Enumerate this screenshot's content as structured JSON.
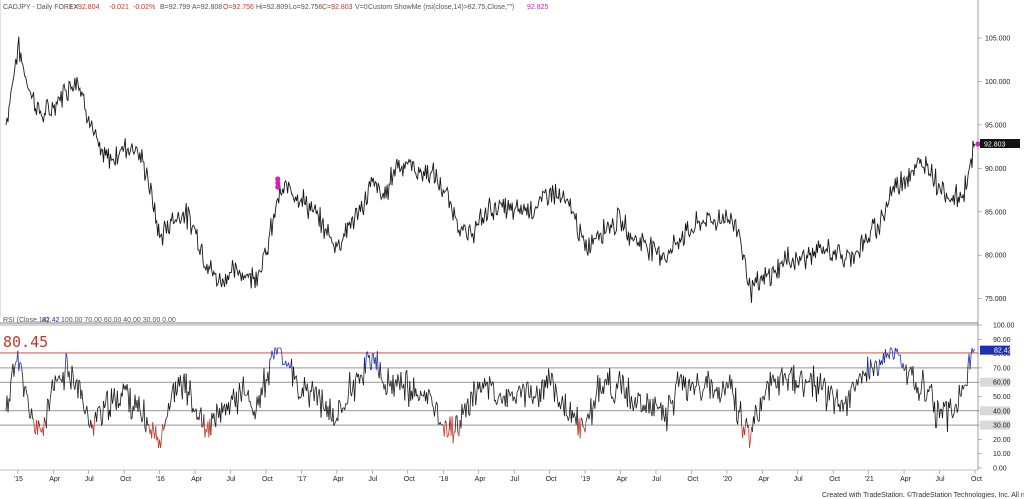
{
  "header": {
    "title": "CADJPY - Daily  FOREX",
    "L": "L=92.804",
    "chg": "-0.021",
    "chgpct": "-0.02%",
    "B": "B=92.799",
    "A": "A=92.808",
    "O": "O=92.756",
    "H": "Hi=92.809",
    "Lo": "Lo=92.756",
    "C": "C=92.803",
    "V": "V=0",
    "indicator": "Custom ShowMe (rsi(close,14)>82.75,Close,\"\")",
    "indicator_value": "92.825"
  },
  "rsi_header": {
    "label": "RSI (Close,14)",
    "value": "82.42",
    "levels_text": "100.00  70.00  60.00  40.00  30.00  0.00"
  },
  "annotation": "80.45",
  "footer": "Created with TradeStation. ©TradeStation Technologies, Inc. All rights reserved.",
  "colors": {
    "price_line": "#1a1a1a",
    "marker": "#d61fbf",
    "overbought": "#1f2fb5",
    "oversold": "#c0392b",
    "level_line": "#c0392b",
    "axis": "#888888"
  },
  "chart_data": [
    {
      "type": "line",
      "title": "CADJPY - Daily",
      "series": [
        {
          "name": "CADJPY",
          "x": [
            "Dec 2014",
            "Jan 2015",
            "Feb 2015",
            "Mar 2015",
            "Apr 2015",
            "May 2015",
            "Jun 2015",
            "Jul 2015",
            "Aug 2015",
            "Sep 2015",
            "Oct 2015",
            "Nov 2015",
            "Dec 2015",
            "Jan 2016",
            "Feb 2016",
            "Mar 2016",
            "Apr 2016",
            "May 2016",
            "Jun 2016",
            "Jul 2016",
            "Aug 2016",
            "Sep 2016",
            "Oct 2016",
            "Nov 2016",
            "Dec 2016",
            "Jan 2017",
            "Feb 2017",
            "Mar 2017",
            "Apr 2017",
            "May 2017",
            "Jun 2017",
            "Jul 2017",
            "Aug 2017",
            "Sep 2017",
            "Oct 2017",
            "Nov 2017",
            "Dec 2017",
            "Jan 2018",
            "Feb 2018",
            "Mar 2018",
            "Apr 2018",
            "May 2018",
            "Jun 2018",
            "Jul 2018",
            "Aug 2018",
            "Sep 2018",
            "Oct 2018",
            "Nov 2018",
            "Dec 2018",
            "Jan 2019",
            "Feb 2019",
            "Mar 2019",
            "Apr 2019",
            "May 2019",
            "Jun 2019",
            "Jul 2019",
            "Aug 2019",
            "Sep 2019",
            "Oct 2019",
            "Nov 2019",
            "Dec 2019",
            "Jan 2020",
            "Feb 2020",
            "Mar 2020",
            "Apr 2020",
            "May 2020",
            "Jun 2020",
            "Jul 2020",
            "Aug 2020",
            "Sep 2020",
            "Oct 2020",
            "Nov 2020",
            "Dec 2020",
            "Jan 2021",
            "Feb 2021",
            "Mar 2021",
            "Apr 2021",
            "May 2021",
            "Jun 2021",
            "Jul 2021",
            "Aug 2021",
            "Sep 2021",
            "Oct 2021"
          ],
          "values": [
            95,
            104,
            99,
            96,
            97,
            99,
            100.5,
            96,
            91.5,
            91,
            92.5,
            92.5,
            89,
            82,
            84,
            85,
            83,
            79,
            77,
            78,
            78,
            77.5,
            80,
            86.5,
            88,
            86.5,
            85,
            83,
            81,
            83.5,
            85,
            88.5,
            86.5,
            90.5,
            90.5,
            89.5,
            89.5,
            87.5,
            84.5,
            82,
            83.5,
            85.5,
            85.5,
            85,
            85.5,
            85.5,
            87.5,
            86.5,
            85,
            80.5,
            82.5,
            83.5,
            84,
            82,
            81.5,
            80.5,
            80,
            82,
            83,
            84,
            84,
            84.5,
            83,
            76,
            77,
            78,
            79.5,
            79.5,
            80,
            80.5,
            80.5,
            79.5,
            80.5,
            82,
            84,
            87.5,
            89,
            90,
            90.5,
            88,
            86.5,
            87,
            92.8
          ]
        }
      ],
      "ylim": [
        73,
        108
      ],
      "yticks": [
        "105.000",
        "100.000",
        "95.000",
        "90.000",
        "85.000",
        "80.000",
        "75.000"
      ],
      "last_value": "92.803",
      "markers": [
        {
          "x": "Nov 2016",
          "y": 88.2
        },
        {
          "x": "Oct 2021",
          "y": 92.8
        }
      ]
    },
    {
      "type": "line",
      "title": "RSI (Close,14)",
      "series": [
        {
          "name": "RSI",
          "x": [
            "Dec 2014",
            "Jan 2015",
            "Feb 2015",
            "Mar 2015",
            "Apr 2015",
            "May 2015",
            "Jun 2015",
            "Jul 2015",
            "Aug 2015",
            "Sep 2015",
            "Oct 2015",
            "Nov 2015",
            "Dec 2015",
            "Jan 2016",
            "Feb 2016",
            "Mar 2016",
            "Apr 2016",
            "May 2016",
            "Jun 2016",
            "Jul 2016",
            "Aug 2016",
            "Sep 2016",
            "Oct 2016",
            "Nov 2016",
            "Dec 2016",
            "Jan 2017",
            "Feb 2017",
            "Mar 2017",
            "Apr 2017",
            "May 2017",
            "Jun 2017",
            "Jul 2017",
            "Aug 2017",
            "Sep 2017",
            "Oct 2017",
            "Nov 2017",
            "Dec 2017",
            "Jan 2018",
            "Feb 2018",
            "Mar 2018",
            "Apr 2018",
            "May 2018",
            "Jun 2018",
            "Jul 2018",
            "Aug 2018",
            "Sep 2018",
            "Oct 2018",
            "Nov 2018",
            "Dec 2018",
            "Jan 2019",
            "Feb 2019",
            "Mar 2019",
            "Apr 2019",
            "May 2019",
            "Jun 2019",
            "Jul 2019",
            "Aug 2019",
            "Sep 2019",
            "Oct 2019",
            "Nov 2019",
            "Dec 2019",
            "Jan 2020",
            "Feb 2020",
            "Mar 2020",
            "Apr 2020",
            "May 2020",
            "Jun 2020",
            "Jul 2020",
            "Aug 2020",
            "Sep 2020",
            "Oct 2020",
            "Nov 2020",
            "Dec 2020",
            "Jan 2021",
            "Feb 2021",
            "Mar 2021",
            "Apr 2021",
            "May 2021",
            "Jun 2021",
            "Jul 2021",
            "Aug 2021",
            "Sep 2021",
            "Oct 2021"
          ],
          "values": [
            40,
            82,
            35,
            25,
            55,
            68,
            62,
            30,
            40,
            45,
            55,
            42,
            30,
            20,
            50,
            62,
            40,
            25,
            35,
            45,
            55,
            40,
            62,
            84,
            70,
            50,
            55,
            40,
            35,
            55,
            65,
            80,
            55,
            62,
            55,
            48,
            50,
            30,
            25,
            45,
            55,
            60,
            45,
            50,
            55,
            50,
            62,
            45,
            35,
            25,
            55,
            58,
            60,
            45,
            40,
            45,
            38,
            62,
            58,
            55,
            55,
            60,
            40,
            20,
            50,
            60,
            62,
            58,
            60,
            55,
            50,
            45,
            62,
            65,
            72,
            82,
            68,
            60,
            55,
            35,
            40,
            55,
            82.42
          ]
        }
      ],
      "ylim": [
        0,
        100
      ],
      "yticks": [
        "100.00",
        "90.00",
        "80.00",
        "70.00",
        "60.00",
        "50.00",
        "40.00",
        "30.00",
        "20.00",
        "10.00",
        "0.00"
      ],
      "levels": [
        80.45,
        70,
        60,
        40,
        30
      ],
      "highlighted_levels": [
        "82.42",
        "60.00",
        "40.00",
        "30.00"
      ],
      "last_value": "82.42"
    }
  ],
  "x_axis_labels": [
    "'15",
    "Apr",
    "Jul",
    "Oct",
    "'16",
    "Apr",
    "Jul",
    "Oct",
    "'17",
    "Apr",
    "Jul",
    "Oct",
    "'18",
    "Apr",
    "Jul",
    "Oct",
    "'19",
    "Apr",
    "Jul",
    "Oct",
    "'20",
    "Apr",
    "Jul",
    "Oct",
    "'21",
    "Apr",
    "Jul",
    "Oct"
  ]
}
